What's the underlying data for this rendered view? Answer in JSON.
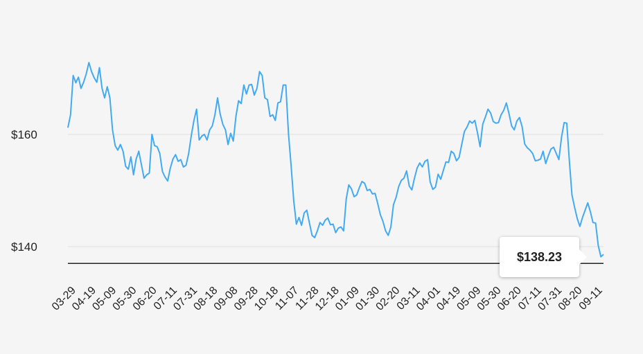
{
  "chart_data": {
    "type": "line",
    "ylim": [
      130,
      178
    ],
    "y_ticks": [
      {
        "value": 160,
        "label": "$160"
      },
      {
        "value": 140,
        "label": "$140"
      }
    ],
    "x_tick_labels": [
      "03-29",
      "04-19",
      "05-09",
      "05-30",
      "06-20",
      "07-11",
      "07-31",
      "08-18",
      "09-08",
      "09-28",
      "10-18",
      "11-07",
      "11-28",
      "12-18",
      "01-09",
      "01-30",
      "02-20",
      "03-11",
      "04-01",
      "04-19",
      "05-09",
      "05-30",
      "06-20",
      "07-11",
      "07-31",
      "08-20",
      "09-11"
    ],
    "reference_line": 137,
    "tooltip_label": "$138.23",
    "line_color": "#42aaf2",
    "series": [
      {
        "values": [
          161.2,
          163.5,
          170.5,
          169.2,
          170.2,
          168.2,
          169.3,
          170.8,
          172.8,
          171.2,
          170.1,
          169.3,
          171.9,
          168.2,
          166.5,
          168.5,
          166.5,
          160.8,
          158.0,
          157.2,
          158.2,
          157.0,
          154.3,
          153.8,
          156.0,
          152.8,
          155.6,
          157.0,
          154.6,
          152.2,
          152.8,
          153.1,
          160.0,
          158.0,
          157.8,
          156.6,
          153.4,
          152.4,
          151.7,
          154.0,
          155.6,
          156.4,
          155.2,
          155.5,
          154.2,
          154.5,
          156.6,
          159.8,
          162.5,
          164.5,
          159.0,
          159.7,
          160.0,
          159.0,
          160.8,
          161.5,
          163.5,
          166.5,
          163.6,
          161.8,
          160.8,
          158.2,
          160.2,
          158.8,
          163.2,
          166.0,
          165.5,
          168.8,
          167.2,
          168.8,
          168.9,
          167.0,
          168.2,
          171.2,
          170.5,
          166.5,
          166.2,
          163.2,
          163.5,
          162.5,
          165.6,
          165.8,
          168.8,
          168.8,
          160.2,
          154.5,
          148.2,
          144.0,
          145.2,
          143.8,
          146.0,
          146.5,
          144.2,
          142.0,
          141.6,
          142.8,
          144.3,
          143.8,
          144.7,
          145.1,
          143.9,
          144.0,
          142.5,
          143.3,
          143.5,
          142.8,
          148.5,
          151.0,
          150.3,
          148.9,
          149.2,
          150.5,
          151.6,
          151.3,
          150.0,
          150.2,
          149.4,
          149.5,
          147.7,
          145.7,
          144.5,
          142.8,
          142.0,
          143.5,
          147.5,
          148.8,
          150.7,
          151.8,
          152.2,
          153.5,
          150.8,
          150.1,
          152.2,
          154.0,
          154.9,
          154.2,
          155.2,
          155.5,
          151.5,
          150.2,
          150.6,
          152.9,
          152.0,
          153.6,
          155.1,
          155.0,
          157.0,
          156.6,
          155.3,
          155.9,
          158.2,
          160.5,
          161.3,
          162.4,
          162.0,
          162.5,
          160.3,
          157.8,
          161.8,
          163.1,
          164.5,
          163.8,
          162.3,
          162.0,
          162.1,
          163.5,
          164.3,
          165.6,
          163.7,
          161.5,
          160.8,
          162.4,
          163.0,
          161.4,
          158.3,
          157.6,
          157.2,
          156.6,
          155.3,
          155.4,
          155.6,
          157.0,
          154.8,
          156.2,
          157.4,
          157.7,
          156.6,
          155.5,
          159.5,
          162.1,
          162.0,
          155.3,
          149.2,
          147.0,
          145.0,
          143.6,
          145.2,
          146.5,
          147.8,
          146.2,
          144.3,
          144.2,
          140.2,
          138.2,
          138.6
        ]
      }
    ]
  }
}
